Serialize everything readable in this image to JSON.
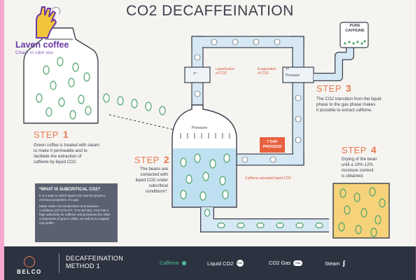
{
  "title": "CO2 DECAFFEINATION",
  "logo": {
    "name": "Laven coffee",
    "tagline": "Chạm vị cảm xúc"
  },
  "steps": [
    {
      "label": "STEP",
      "number": "1",
      "text": [
        "Green coffee is treated with steam",
        "to make it permeable and to",
        "facilitate the extraction of",
        "caffeine by liquid CO2."
      ]
    },
    {
      "label": "STEP",
      "number": "2",
      "text": [
        "The beans are",
        "contacted with",
        "liquid CO2 under",
        "subcritical",
        "conditions*."
      ]
    },
    {
      "label": "STEP",
      "number": "3",
      "text": [
        "The CO2 transition from the liquid",
        "phase to the gas phase makes",
        "it possible to extract caffeine."
      ]
    },
    {
      "label": "STEP",
      "number": "4",
      "text": [
        "Drying of the bean",
        "until a 10%-12%",
        "moisture content",
        "is obtained."
      ]
    }
  ],
  "diagram": {
    "liquefaction": [
      "Liquefaction",
      "of CO2"
    ],
    "evaporation": [
      "Evaporation",
      "of CO2"
    ],
    "pressure_left": "Pressure",
    "pressure_right": "Pressure",
    "pressure_vessel": "Pressure",
    "temp_left": "T°",
    "temp_right": "T°",
    "seven_day": [
      "7 DAY",
      "PROCESS"
    ],
    "caffeine_saturated": "Caffeine-saturated liquid CO2",
    "pure_caffeine": [
      "PURE",
      "CAFFEINE"
    ],
    "co2_bubble": "CO2"
  },
  "note": {
    "title": "*WHAT IS SUBCRITICAL CO2?",
    "paragraphs": [
      "It is a state in which liquid CO2 has the physico-chemical properties of a gas.",
      "Made under low temperature and pressure conditions (23°C/73.4°F, 70 to 80 bar), CO2 has a high selectivity for caffeine and preserves the other components of green coffee, as well as its original cup profile."
    ]
  },
  "footer": {
    "brand": "BELCO",
    "method_line1": "DECAFFEINATION",
    "method_line2": "METHOD 1",
    "legend": [
      {
        "label": "Caffeine",
        "icon": "caffeine-dot-icon"
      },
      {
        "label": "Liquid CO2",
        "icon": "liquid-co2-icon"
      },
      {
        "label": "CO2 Gas",
        "icon": "co2-gas-icon"
      },
      {
        "label": "Steam",
        "icon": "steam-icon"
      }
    ]
  },
  "colors": {
    "background": "#f5f4f1",
    "dark": "#3a3f4b",
    "accent_orange": "#e9784e",
    "bean_green": "#4fa36a",
    "pipe_blue": "#d6e8f3",
    "liquid_blue": "#bfe0f0",
    "footer": "#2d3240",
    "note_bg": "#5b6170",
    "drum_yellow": "#f6d37a"
  }
}
